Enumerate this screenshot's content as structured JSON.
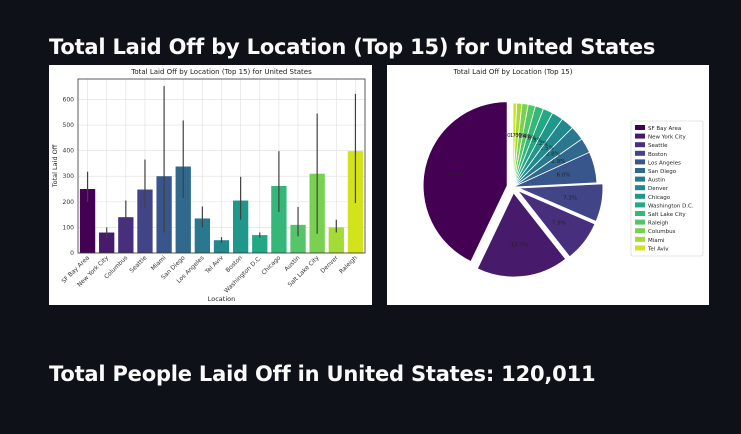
{
  "page": {
    "heading_chart": "Total Laid Off by Location (Top 15) for United States",
    "heading_total": "Total People Laid Off in United States: 120,011"
  },
  "chart_data": [
    {
      "type": "bar",
      "title": "Total Laid Off by Location (Top 15) for United States",
      "xlabel": "Location",
      "ylabel": "Total Laid Off",
      "ylim": [
        0,
        680
      ],
      "yticks": [
        0,
        100,
        200,
        300,
        400,
        500,
        600
      ],
      "grid": true,
      "categories": [
        "SF Bay Area",
        "New York City",
        "Columbus",
        "Seattle",
        "Miami",
        "San Diego",
        "Los Angeles",
        "Tel Aviv",
        "Boston",
        "Washington D.C.",
        "Chicago",
        "Austin",
        "Salt Lake City",
        "Denver",
        "Raleigh"
      ],
      "values": [
        250,
        80,
        140,
        248,
        300,
        338,
        135,
        50,
        205,
        70,
        262,
        110,
        310,
        100,
        398
      ],
      "error_low": [
        200,
        60,
        105,
        175,
        80,
        215,
        100,
        40,
        130,
        60,
        160,
        65,
        75,
        80,
        195
      ],
      "error_high": [
        318,
        100,
        205,
        365,
        652,
        518,
        182,
        62,
        298,
        80,
        398,
        180,
        545,
        130,
        622
      ],
      "colors": [
        "#440154",
        "#481a6c",
        "#472f7d",
        "#414487",
        "#39568c",
        "#31688e",
        "#2a788e",
        "#23888e",
        "#1f988b",
        "#22a884",
        "#35b779",
        "#54c568",
        "#7ad151",
        "#a5db36",
        "#d2e21b"
      ]
    },
    {
      "type": "pie",
      "title": "Total Laid Off by Location (Top 15)",
      "labels": [
        "SF Bay Area",
        "New York City",
        "Seattle",
        "Boston",
        "Los Angeles",
        "San Diego",
        "Austin",
        "Denver",
        "Chicago",
        "Washington D.C.",
        "Salt Lake City",
        "Raleigh",
        "Columbus",
        "Miami",
        "Tel Aviv"
      ],
      "values": [
        42.9,
        17.7,
        7.9,
        7.3,
        6.0,
        2.9,
        2.8,
        2.5,
        2.2,
        1.9,
        1.6,
        1.4,
        1.2,
        1.0,
        0.7
      ],
      "pct_labels": [
        "42.9%",
        "17.7%",
        "7.9%",
        "7.3%",
        "6.0%",
        "2.9%",
        "2.8%",
        "2.5%",
        "2.2%",
        "1.9%",
        "1.6%",
        "1.4%",
        "1.2%",
        "1.0%",
        "0.7%"
      ],
      "legend": "right",
      "colors": [
        "#440154",
        "#481a6c",
        "#472f7d",
        "#414487",
        "#39568c",
        "#31688e",
        "#2a788e",
        "#23888e",
        "#1f988b",
        "#22a884",
        "#35b779",
        "#54c568",
        "#7ad151",
        "#a5db36",
        "#d2e21b"
      ]
    }
  ]
}
